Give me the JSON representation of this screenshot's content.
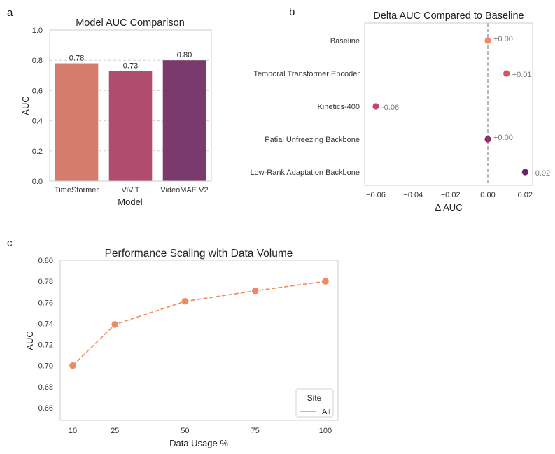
{
  "colors": {
    "timesformer": "#d67c6c",
    "vivit": "#b04d6e",
    "videomae": "#7a3a6b",
    "delta_baseline": "#ec8b62",
    "delta_temporal": "#d4575a",
    "delta_kinetics": "#c2456c",
    "delta_partial": "#932e67",
    "delta_lora": "#6e2366",
    "line": "#ec8b62",
    "neutral": "#808080"
  },
  "chart_data": [
    {
      "panel": "a",
      "type": "bar",
      "title": "Model AUC Comparison",
      "xlabel": "Model",
      "ylabel": "AUC",
      "categories": [
        "TimeSformer",
        "ViViT",
        "VideoMAE V2"
      ],
      "values": [
        0.78,
        0.73,
        0.8
      ],
      "value_labels": [
        "0.78",
        "0.73",
        "0.80"
      ],
      "ylim": [
        0,
        1.0
      ],
      "yticks": [
        0.0,
        0.2,
        0.4,
        0.6,
        0.8,
        1.0
      ],
      "ytick_labels": [
        "0.0",
        "0.2",
        "0.4",
        "0.6",
        "0.8",
        "1.0"
      ],
      "grid": "horizontal dashed"
    },
    {
      "panel": "b",
      "type": "scatter",
      "title": "Delta AUC Compared to Baseline",
      "xlabel": "Δ AUC",
      "ylabel": "",
      "categories": [
        "Baseline",
        "Temporal Transformer Encoder",
        "Kinetics-400",
        "Patial Unfreezing Backbone",
        "Low-Rank Adaptation Backbone"
      ],
      "values": [
        0.0,
        0.01,
        -0.06,
        0.0,
        0.02
      ],
      "value_labels": [
        "+0.00",
        "+0.01",
        "-0.06",
        "+0.00",
        "+0.02"
      ],
      "xlim": [
        -0.066,
        0.024
      ],
      "xticks": [
        -0.06,
        -0.04,
        -0.02,
        0.0,
        0.02
      ],
      "xtick_labels": [
        "−0.06",
        "−0.04",
        "−0.02",
        "0.00",
        "0.02"
      ],
      "reference_line": 0.0
    },
    {
      "panel": "c",
      "type": "line",
      "title": "Performance Scaling with Data Volume",
      "xlabel": "Data Usage %",
      "ylabel": "AUC",
      "x": [
        10,
        25,
        50,
        75,
        100
      ],
      "series": [
        {
          "name": "All",
          "values": [
            0.7,
            0.739,
            0.761,
            0.771,
            0.78
          ]
        }
      ],
      "xticks": [
        10,
        25,
        50,
        75,
        100
      ],
      "xtick_labels": [
        "10",
        "25",
        "50",
        "75",
        "100"
      ],
      "ylim": [
        0.648,
        0.8
      ],
      "yticks": [
        0.66,
        0.68,
        0.7,
        0.72,
        0.74,
        0.76,
        0.78,
        0.8
      ],
      "ytick_labels": [
        "0.66",
        "0.68",
        "0.70",
        "0.72",
        "0.74",
        "0.76",
        "0.78",
        "0.80"
      ],
      "legend": {
        "title": "Site",
        "placement": "bottom-right"
      },
      "grid": "off"
    }
  ],
  "panel_labels": [
    "a",
    "b",
    "c"
  ]
}
